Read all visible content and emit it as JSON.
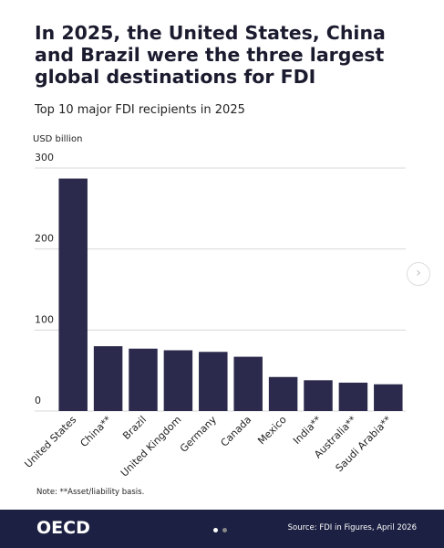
{
  "chart_data": {
    "type": "bar",
    "title": "In 2025, the United States, China and Brazil were the three largest global destinations for FDI",
    "subtitle": "Top 10 major FDI recipients in 2025",
    "y_label": "USD billion",
    "categories": [
      "United States",
      "China**",
      "Brazil",
      "United Kingdom",
      "Germany",
      "Canada",
      "Mexico",
      "India**",
      "Australia**",
      "Saudi Arabia**"
    ],
    "values": [
      287,
      80,
      77,
      75,
      73,
      67,
      42,
      38,
      35,
      33
    ],
    "color": "#2b2a4c",
    "ylim": [
      0,
      300
    ],
    "yticks": [
      0,
      100,
      200,
      300
    ],
    "grid": true,
    "note": "Note: **Asset/liability basis."
  },
  "footer": {
    "logo": "OECD",
    "source": "Source: FDI in Figures, April 2026"
  }
}
